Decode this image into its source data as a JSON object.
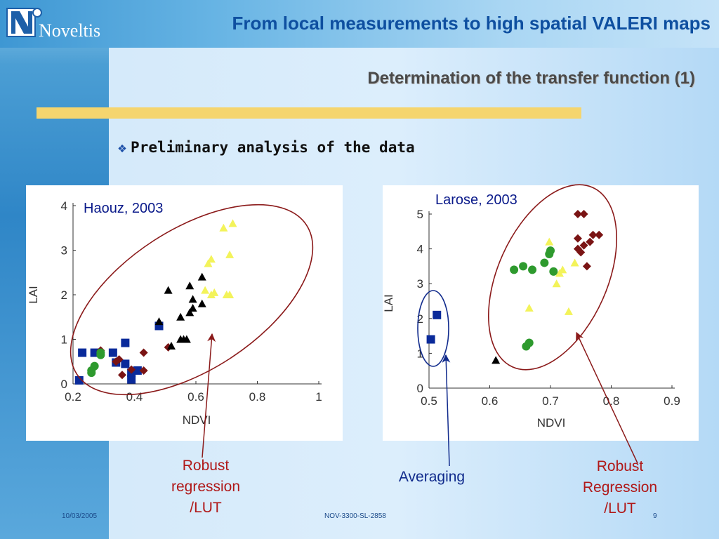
{
  "header": {
    "logo_text": "Noveltis",
    "title": "From local measurements to high spatial VALERI maps"
  },
  "slide": {
    "subtitle": "Determination of the transfer function (1)",
    "bullet": "Preliminary analysis of the data",
    "bullet_icon": "four-diamond-bullet-icon"
  },
  "annotations": {
    "left": [
      "Robust",
      "regression",
      "/LUT"
    ],
    "middle": "Averaging",
    "right": [
      "Robust",
      "Regression",
      "/LUT"
    ]
  },
  "footer": {
    "date": "10/03/2005",
    "code": "NOV-3300-SL-2858",
    "page": "9"
  },
  "colors": {
    "title_blue": "#0e4fa0",
    "accent_gold": "#f5d56e",
    "ellipse_red": "#8b1a1a",
    "ellipse_blue": "#102a8c",
    "ann_red": "#b01818",
    "ann_blue": "#102a8c",
    "series_blue": "#0a2a9a",
    "series_darkred": "#7a1414",
    "series_green": "#2e9a2e",
    "series_black": "#000000",
    "series_yellow": "#f3f35a"
  },
  "chart_data": [
    {
      "type": "scatter",
      "title": "Haouz, 2003",
      "xlabel": "NDVI",
      "ylabel": "LAI",
      "xlim": [
        0.2,
        1.0
      ],
      "ylim": [
        0,
        4
      ],
      "xticks": [
        "0.2",
        "0.4",
        "0.6",
        "0.8",
        "1"
      ],
      "xtick_values": [
        0.2,
        0.4,
        0.6,
        0.8,
        1.0
      ],
      "yticks": [
        "0",
        "1",
        "2",
        "3",
        "4"
      ],
      "ytick_values": [
        0,
        1,
        2,
        3,
        4
      ],
      "series": [
        {
          "marker": "square",
          "color": "#0a2a9a",
          "points": [
            [
              0.22,
              0.08
            ],
            [
              0.23,
              0.7
            ],
            [
              0.27,
              0.7
            ],
            [
              0.33,
              0.7
            ],
            [
              0.34,
              0.48
            ],
            [
              0.37,
              0.92
            ],
            [
              0.37,
              0.45
            ],
            [
              0.39,
              0.1
            ],
            [
              0.39,
              0.25
            ],
            [
              0.41,
              0.3
            ],
            [
              0.48,
              1.3
            ]
          ]
        },
        {
          "marker": "diamond",
          "color": "#7a1414",
          "points": [
            [
              0.29,
              0.75
            ],
            [
              0.34,
              0.5
            ],
            [
              0.35,
              0.55
            ],
            [
              0.36,
              0.2
            ],
            [
              0.39,
              0.32
            ],
            [
              0.43,
              0.3
            ],
            [
              0.43,
              0.7
            ],
            [
              0.51,
              0.82
            ]
          ]
        },
        {
          "marker": "circle",
          "color": "#2e9a2e",
          "points": [
            [
              0.26,
              0.25
            ],
            [
              0.26,
              0.3
            ],
            [
              0.27,
              0.4
            ],
            [
              0.29,
              0.7
            ],
            [
              0.29,
              0.65
            ]
          ]
        },
        {
          "marker": "triangle",
          "color": "#000000",
          "points": [
            [
              0.48,
              1.4
            ],
            [
              0.51,
              2.1
            ],
            [
              0.52,
              0.85
            ],
            [
              0.55,
              1.5
            ],
            [
              0.55,
              1.0
            ],
            [
              0.56,
              1.0
            ],
            [
              0.57,
              1.0
            ],
            [
              0.58,
              1.6
            ],
            [
              0.58,
              2.2
            ],
            [
              0.59,
              1.9
            ],
            [
              0.59,
              1.7
            ],
            [
              0.62,
              2.4
            ],
            [
              0.62,
              1.8
            ]
          ]
        },
        {
          "marker": "triangle",
          "color": "#f3f35a",
          "points": [
            [
              0.63,
              2.1
            ],
            [
              0.64,
              2.7
            ],
            [
              0.65,
              2.8
            ],
            [
              0.65,
              2.0
            ],
            [
              0.66,
              2.05
            ],
            [
              0.69,
              3.5
            ],
            [
              0.7,
              2.0
            ],
            [
              0.71,
              2.9
            ],
            [
              0.72,
              3.6
            ],
            [
              0.71,
              2.0
            ]
          ]
        }
      ]
    },
    {
      "type": "scatter",
      "title": "Larose, 2003",
      "xlabel": "NDVI",
      "ylabel": "LAI",
      "xlim": [
        0.5,
        0.9
      ],
      "ylim": [
        0,
        5
      ],
      "xticks": [
        "0.5",
        "0.6",
        "0.7",
        "0.8",
        "0.9"
      ],
      "xtick_values": [
        0.5,
        0.6,
        0.7,
        0.8,
        0.9
      ],
      "yticks": [
        "0",
        "1",
        "2",
        "3",
        "4",
        "5"
      ],
      "ytick_values": [
        0,
        1,
        2,
        3,
        4,
        5
      ],
      "series": [
        {
          "marker": "square",
          "color": "#0a2a9a",
          "points": [
            [
              0.503,
              1.4
            ],
            [
              0.513,
              2.1
            ]
          ]
        },
        {
          "marker": "triangle",
          "color": "#000000",
          "points": [
            [
              0.61,
              0.8
            ]
          ]
        },
        {
          "marker": "circle",
          "color": "#2e9a2e",
          "points": [
            [
              0.64,
              3.4
            ],
            [
              0.655,
              3.5
            ],
            [
              0.66,
              1.2
            ],
            [
              0.665,
              1.3
            ],
            [
              0.67,
              3.4
            ],
            [
              0.69,
              3.6
            ],
            [
              0.698,
              3.85
            ],
            [
              0.7,
              3.95
            ],
            [
              0.705,
              3.35
            ]
          ]
        },
        {
          "marker": "triangle",
          "color": "#f3f35a",
          "points": [
            [
              0.665,
              2.3
            ],
            [
              0.698,
              4.2
            ],
            [
              0.71,
              3.0
            ],
            [
              0.715,
              3.3
            ],
            [
              0.72,
              3.4
            ],
            [
              0.73,
              2.2
            ],
            [
              0.74,
              3.6
            ]
          ]
        },
        {
          "marker": "diamond",
          "color": "#7a1414",
          "points": [
            [
              0.745,
              5.0
            ],
            [
              0.755,
              5.0
            ],
            [
              0.745,
              4.3
            ],
            [
              0.75,
              3.9
            ],
            [
              0.745,
              4.0
            ],
            [
              0.755,
              4.1
            ],
            [
              0.76,
              3.5
            ],
            [
              0.765,
              4.2
            ],
            [
              0.77,
              4.4
            ],
            [
              0.78,
              4.4
            ]
          ]
        }
      ]
    }
  ]
}
